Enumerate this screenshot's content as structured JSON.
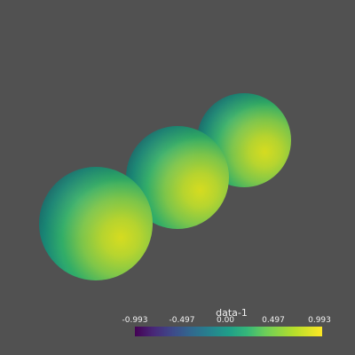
{
  "colorbar": {
    "title": "data-1",
    "ticks": [
      "-0.993",
      "-0.497",
      "0.00",
      "0.497",
      "0.993"
    ],
    "range": [
      -0.993,
      0.993
    ],
    "colormap": "viridis"
  },
  "scene": {
    "background_color": "#515151",
    "objects": [
      {
        "name": "sphere-back"
      },
      {
        "name": "sphere-middle"
      },
      {
        "name": "sphere-front"
      }
    ]
  }
}
